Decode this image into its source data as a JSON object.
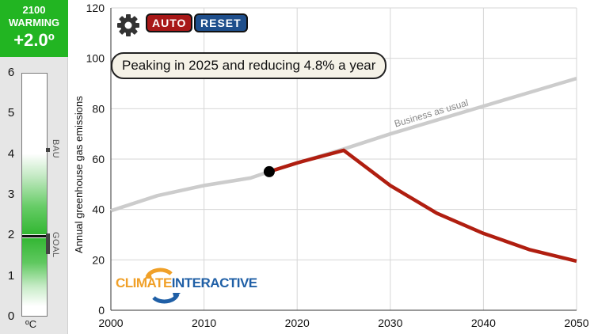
{
  "sidebar": {
    "year": "2100",
    "label": "WARMING",
    "value": "+2.0º",
    "scale": [
      "0",
      "1",
      "2",
      "3",
      "4",
      "5",
      "6"
    ],
    "unit": "ºC",
    "bau_label": "BAU",
    "goal_label": "GOAL",
    "current_warming": 2.0,
    "bau_warming": 4.1,
    "goal_warming": 2.0
  },
  "controls": {
    "settings_icon": "gear-icon",
    "auto_label": "AUTO",
    "reset_label": "RESET"
  },
  "scenario": {
    "text": "Peaking in 2025 and reducing 4.8% a year"
  },
  "logo": {
    "part1": "CLIMATE",
    "part2": "INTERACTIVE"
  },
  "colors": {
    "bau_line": "#cccccc",
    "scenario_line": "#b01e10",
    "badge": "#22b522",
    "grid": "#d6d6d6"
  },
  "chart_data": {
    "type": "line",
    "title": "",
    "xlabel": "",
    "ylabel": "Annual greenhouse gas emissions",
    "xlim": [
      2000,
      2050
    ],
    "ylim": [
      0,
      120
    ],
    "x_ticks": [
      2000,
      2010,
      2020,
      2030,
      2040,
      2050
    ],
    "y_ticks": [
      0,
      20,
      40,
      60,
      80,
      100,
      120
    ],
    "grid": true,
    "annotation": "Business as usual",
    "series": [
      {
        "name": "Business as usual",
        "x": [
          2000,
          2005,
          2010,
          2015,
          2017,
          2020,
          2025,
          2030,
          2035,
          2040,
          2045,
          2050
        ],
        "y": [
          39.5,
          45.5,
          49.5,
          52.5,
          55,
          58.5,
          64,
          70,
          75.5,
          81,
          86.5,
          92
        ]
      },
      {
        "name": "Scenario",
        "x": [
          2017,
          2020,
          2025,
          2030,
          2035,
          2040,
          2045,
          2050
        ],
        "y": [
          55,
          58.5,
          63.5,
          49.5,
          38.5,
          30.5,
          24,
          19.5
        ]
      }
    ],
    "current_point": {
      "x": 2017,
      "y": 55
    }
  }
}
